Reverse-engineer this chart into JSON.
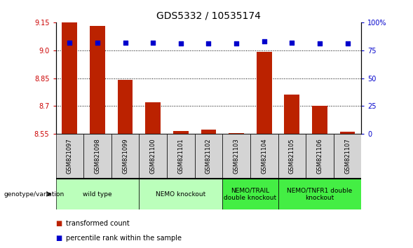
{
  "title": "GDS5332 / 10535174",
  "samples": [
    "GSM821097",
    "GSM821098",
    "GSM821099",
    "GSM821100",
    "GSM821101",
    "GSM821102",
    "GSM821103",
    "GSM821104",
    "GSM821105",
    "GSM821106",
    "GSM821107"
  ],
  "transformed_count": [
    9.148,
    9.13,
    8.84,
    8.72,
    8.565,
    8.573,
    8.553,
    8.99,
    8.76,
    8.7,
    8.563
  ],
  "percentile_rank": [
    82,
    82,
    82,
    82,
    81,
    81,
    81,
    83,
    82,
    81,
    81
  ],
  "ylim_left": [
    8.55,
    9.15
  ],
  "ylim_right": [
    0,
    100
  ],
  "yticks_left": [
    8.55,
    8.7,
    8.85,
    9.0,
    9.15
  ],
  "yticks_right": [
    0,
    25,
    50,
    75,
    100
  ],
  "ytick_labels_right": [
    "0",
    "25",
    "50",
    "75",
    "100%"
  ],
  "grid_values": [
    9.0,
    8.85,
    8.7
  ],
  "groups": [
    {
      "label": "wild type",
      "indices": [
        0,
        1,
        2
      ],
      "color": "#bbffbb"
    },
    {
      "label": "NEMO knockout",
      "indices": [
        3,
        4,
        5
      ],
      "color": "#bbffbb"
    },
    {
      "label": "NEMO/TRAIL\ndouble knockout",
      "indices": [
        6,
        7
      ],
      "color": "#44ee44"
    },
    {
      "label": "NEMO/TNFR1 double\nknockout",
      "indices": [
        8,
        9,
        10
      ],
      "color": "#44ee44"
    }
  ],
  "bar_color": "#bb2200",
  "dot_color": "#0000cc",
  "bar_bottom": 8.55,
  "legend_square_red": "#bb2200",
  "legend_square_blue": "#0000cc",
  "legend_text_red": "transformed count",
  "legend_text_blue": "percentile rank within the sample",
  "genotype_label": "genotype/variation",
  "title_fontsize": 10,
  "tick_fontsize": 7,
  "label_fontsize": 6,
  "group_label_fontsize": 7
}
